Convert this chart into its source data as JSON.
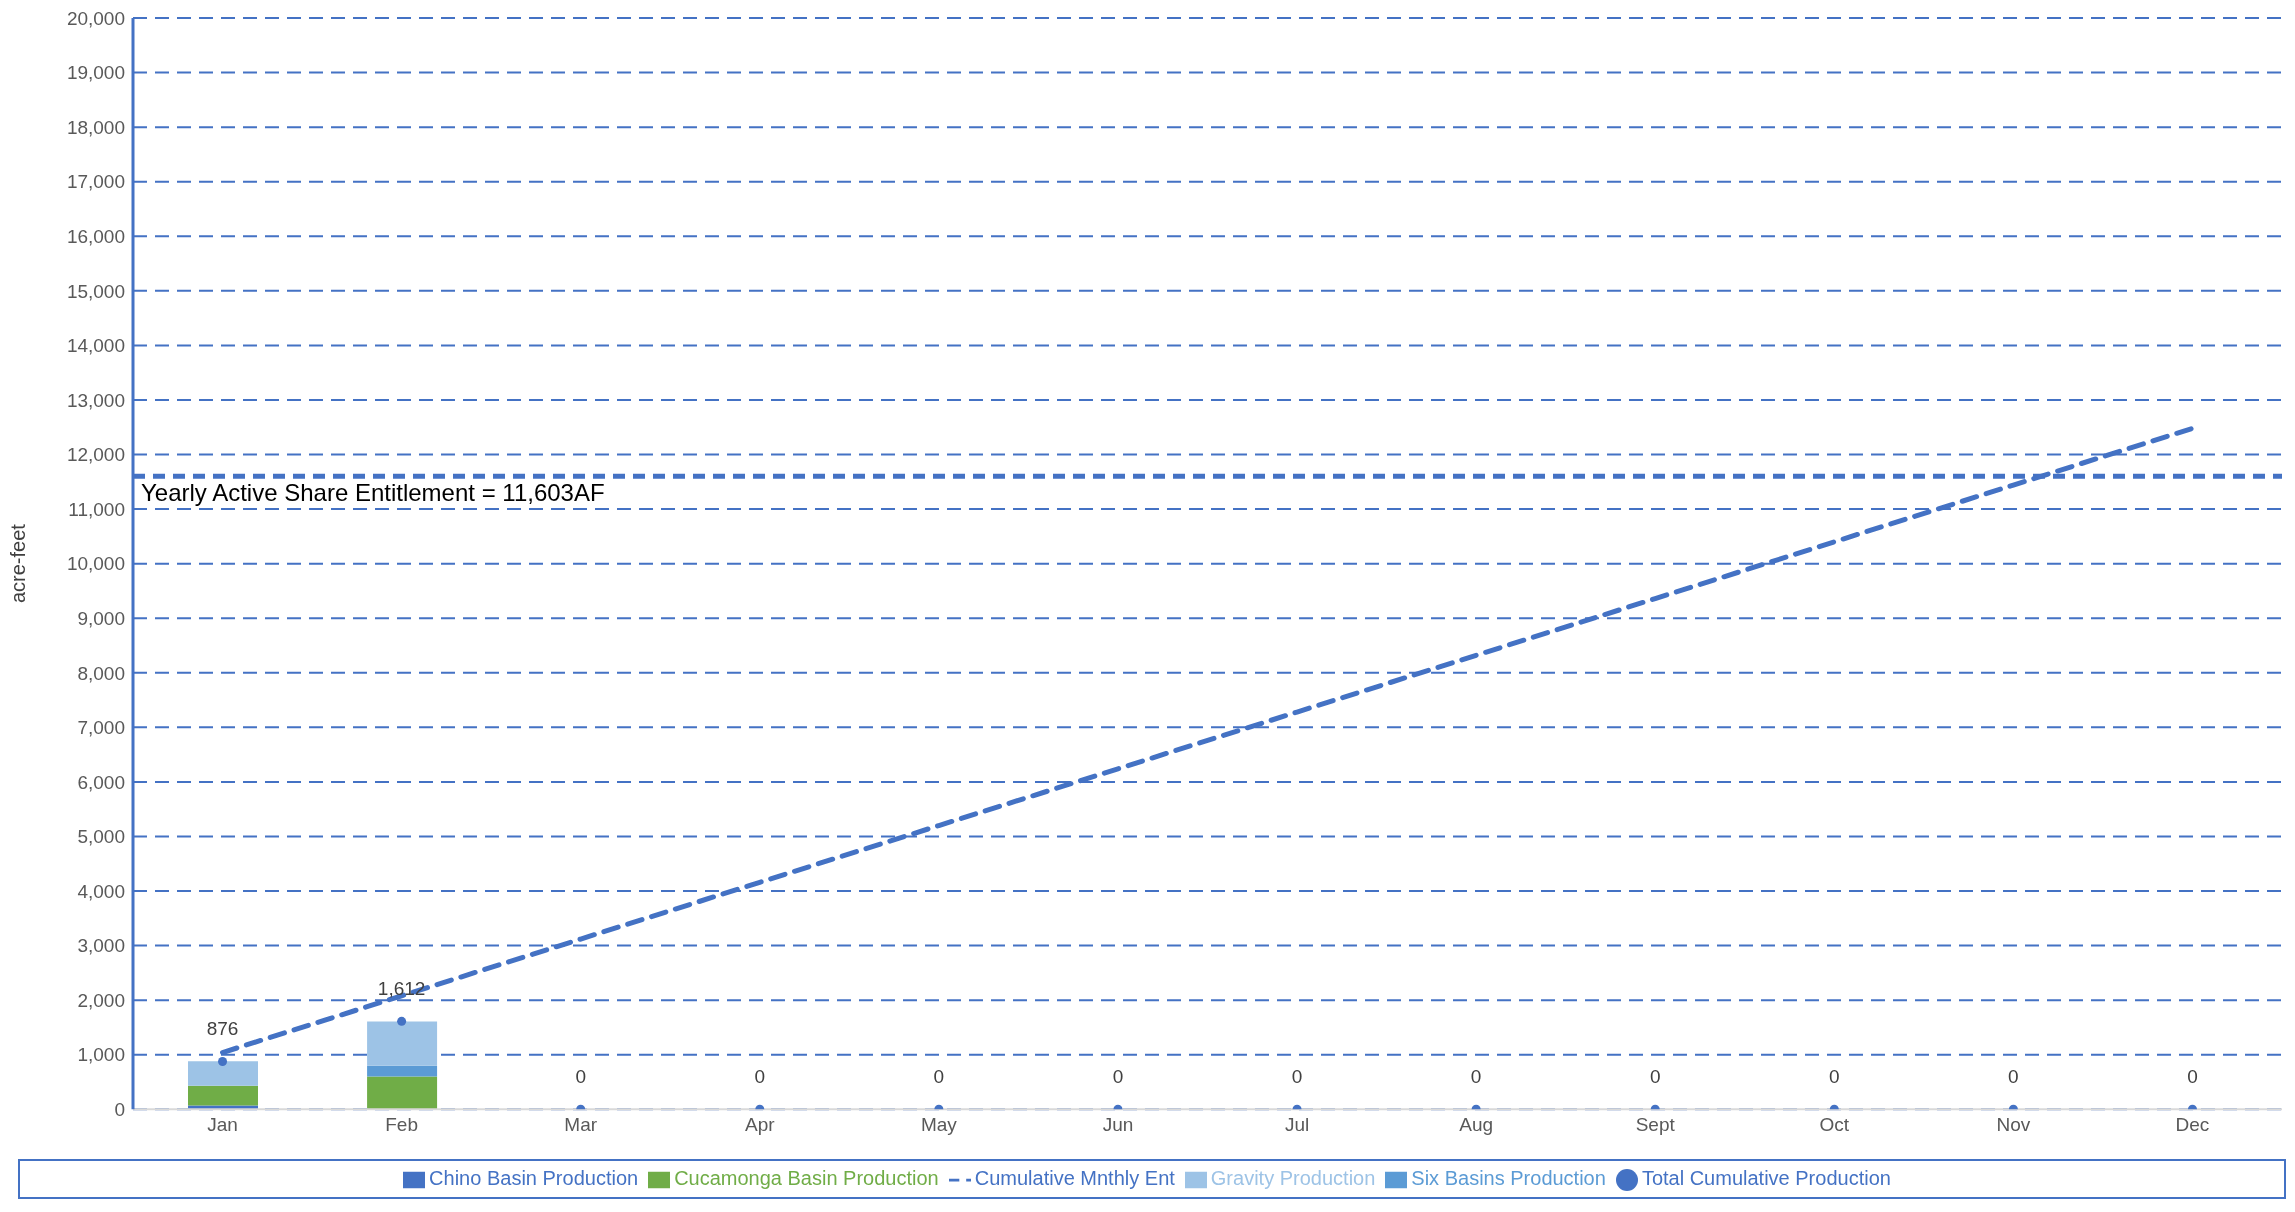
{
  "chart_data": {
    "type": "bar",
    "stacked": true,
    "ylabel": "acre-feet",
    "categories": [
      "Jan",
      "Feb",
      "Mar",
      "Apr",
      "May",
      "Jun",
      "Jul",
      "Aug",
      "Sept",
      "Oct",
      "Nov",
      "Dec"
    ],
    "series": [
      {
        "name": "Chino Basin Production",
        "color": "#4472c4",
        "values": [
          70,
          0,
          0,
          0,
          0,
          0,
          0,
          0,
          0,
          0,
          0,
          0
        ]
      },
      {
        "name": "Cucamonga Basin Production",
        "color": "#70ad47",
        "values": [
          360,
          600,
          0,
          0,
          0,
          0,
          0,
          0,
          0,
          0,
          0,
          0
        ]
      },
      {
        "name": "Six Basins Production",
        "color": "#5b9bd5",
        "values": [
          0,
          200,
          0,
          0,
          0,
          0,
          0,
          0,
          0,
          0,
          0,
          0
        ]
      },
      {
        "name": "Gravity Production",
        "color": "#9dc3e6",
        "values": [
          450,
          810,
          0,
          0,
          0,
          0,
          0,
          0,
          0,
          0,
          0,
          0
        ]
      },
      {
        "name": "Cumulative Mnthly Ent",
        "type": "line",
        "line_style": "dashed",
        "marker": "none",
        "color": "#4472c4",
        "values": [
          1040,
          2080,
          3120,
          4160,
          5200,
          6240,
          7280,
          8320,
          9360,
          10400,
          11440,
          12480
        ]
      },
      {
        "name": "Total Cumulative Production",
        "type": "scatter",
        "marker": "circle",
        "color": "#4472c4",
        "values": [
          876,
          1612,
          0,
          0,
          0,
          0,
          0,
          0,
          0,
          0,
          0,
          0
        ],
        "value_labels": [
          "876",
          "1,612",
          "0",
          "0",
          "0",
          "0",
          "0",
          "0",
          "0",
          "0",
          "0",
          "0"
        ]
      }
    ],
    "ylim": [
      0,
      20000
    ],
    "yticks": [
      0,
      {
        "value": 1000,
        "label": "1,000"
      },
      {
        "value": 2000,
        "label": "2,000"
      },
      {
        "value": 3000,
        "label": "3,000"
      },
      {
        "value": 4000,
        "label": "4,000"
      },
      {
        "value": 5000,
        "label": "5,000"
      },
      {
        "value": 6000,
        "label": "6,000"
      },
      {
        "value": 7000,
        "label": "7,000"
      },
      {
        "value": 8000,
        "label": "8,000"
      },
      {
        "value": 9000,
        "label": "9,000"
      },
      {
        "value": 10000,
        "label": "10,000"
      },
      {
        "value": 11000,
        "label": "11,000"
      },
      {
        "value": 12000,
        "label": "12,000"
      },
      {
        "value": 13000,
        "label": "13,000"
      },
      {
        "value": 14000,
        "label": "14,000"
      },
      {
        "value": 15000,
        "label": "15,000"
      },
      {
        "value": 16000,
        "label": "16,000"
      },
      {
        "value": 17000,
        "label": "17,000"
      },
      {
        "value": 18000,
        "label": "18,000"
      },
      {
        "value": 19000,
        "label": "19,000"
      },
      {
        "value": 20000,
        "label": "20,000"
      }
    ],
    "grid": "y",
    "legend": "bottom",
    "ref_lines": [
      {
        "axis": "y",
        "value": 11603,
        "label": "Yearly Active Share Entitlement = 11,603AF",
        "color": "#4472c4",
        "line_style": "dashed"
      }
    ]
  }
}
